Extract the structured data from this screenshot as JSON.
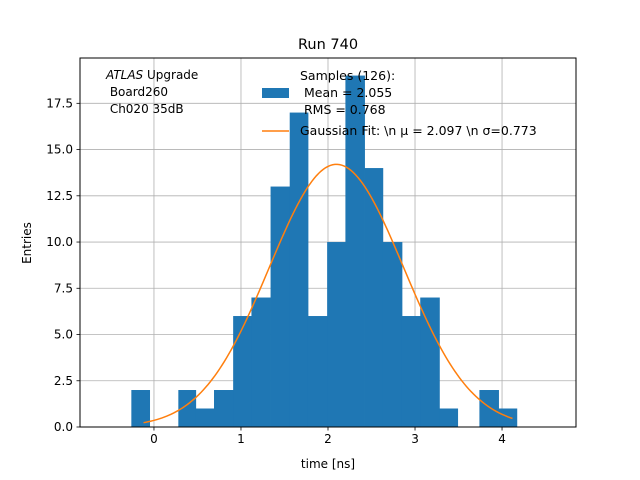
{
  "chart_data": {
    "type": "bar",
    "title": "Run 740",
    "xlabel": "time [ns]",
    "ylabel": "Entries",
    "xlim": [
      -0.85,
      4.85
    ],
    "ylim": [
      0,
      19.95
    ],
    "grid": true,
    "x_ticks": [
      0,
      1,
      2,
      3,
      4
    ],
    "y_ticks": [
      0.0,
      2.5,
      5.0,
      7.5,
      10.0,
      12.5,
      15.0,
      17.5
    ],
    "x_tick_labels": [
      "0",
      "1",
      "2",
      "3",
      "4"
    ],
    "y_tick_labels": [
      "0.0",
      "2.5",
      "5.0",
      "7.5",
      "10.0",
      "12.5",
      "15.0",
      "17.5"
    ],
    "hist_color": "#1f77b4",
    "fit_color": "#ff7f0e",
    "bins": [
      {
        "x0": -0.26,
        "x1": -0.05,
        "count": 2
      },
      {
        "x0": 0.28,
        "x1": 0.48,
        "count": 2
      },
      {
        "x0": 0.48,
        "x1": 0.69,
        "count": 1
      },
      {
        "x0": 0.69,
        "x1": 0.91,
        "count": 2
      },
      {
        "x0": 0.91,
        "x1": 1.12,
        "count": 6
      },
      {
        "x0": 1.12,
        "x1": 1.34,
        "count": 7
      },
      {
        "x0": 1.34,
        "x1": 1.56,
        "count": 13
      },
      {
        "x0": 1.56,
        "x1": 1.77,
        "count": 17
      },
      {
        "x0": 1.77,
        "x1": 1.99,
        "count": 6
      },
      {
        "x0": 1.99,
        "x1": 2.2,
        "count": 10
      },
      {
        "x0": 2.2,
        "x1": 2.42,
        "count": 19
      },
      {
        "x0": 2.42,
        "x1": 2.63,
        "count": 14
      },
      {
        "x0": 2.63,
        "x1": 2.85,
        "count": 10
      },
      {
        "x0": 2.85,
        "x1": 3.06,
        "count": 6
      },
      {
        "x0": 3.06,
        "x1": 3.28,
        "count": 7
      },
      {
        "x0": 3.28,
        "x1": 3.49,
        "count": 1
      },
      {
        "x0": 3.74,
        "x1": 3.96,
        "count": 2
      },
      {
        "x0": 3.96,
        "x1": 4.17,
        "count": 1
      }
    ],
    "fit": {
      "mu": 2.097,
      "sigma": 0.773,
      "amplitude": 14.2,
      "x_range": [
        -0.12,
        4.12
      ]
    },
    "legend": {
      "placement": "upper-center",
      "hist_label_lines": [
        "Samples (126):",
        " Mean = 2.055",
        " RMS = 0.768"
      ],
      "fit_label": "Gaussian Fit: \\n μ = 2.097 \\n σ=0.773"
    },
    "annotation": {
      "atlas": "ATLAS",
      "upgrade": " Upgrade",
      "line2": " Board260",
      "line3": " Ch020 35dB"
    }
  }
}
